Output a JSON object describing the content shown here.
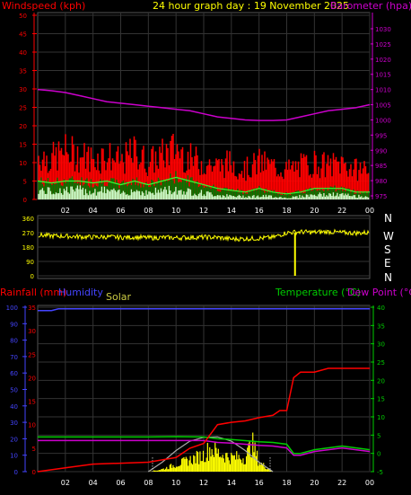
{
  "header": {
    "wind_label": "Windspeed (kph)",
    "title": "24 hour graph day : 19 November 2025",
    "baro_label": "Barometer (hpa)"
  },
  "colors": {
    "wind_label": "#ff0000",
    "title": "#ffff00",
    "baro": "#cc00cc",
    "gust": "#ff0000",
    "avgwind": "#00cc00",
    "lull": "#ccffcc",
    "winddir": "#ffff00",
    "rain": "#ff0000",
    "humidity": "#4444ff",
    "temperature": "#00cc00",
    "dewpoint": "#cc00cc",
    "solar": "#ffff00",
    "solar_max": "#aaaaaa",
    "grid": "#333333",
    "tick_red": "#ff0000",
    "tick_purple": "#cc00cc",
    "tick_blue": "#4444ff",
    "tick_green": "#00cc00",
    "tick_yellow": "#ffff00"
  },
  "dir_labels": [
    "N",
    "W",
    "S",
    "E",
    "N"
  ],
  "bottom_labels": {
    "rainfall": "Rainfall (mm)",
    "humidity": "Humidity",
    "solar": "Solar",
    "temperature": "Temperature (°C)",
    "dewpoint": "Dew Point (°C)"
  },
  "chart_data": [
    {
      "type": "line",
      "title": "24 hour graph day : 19 November 2025",
      "x_tick_labels": [
        "02",
        "04",
        "06",
        "08",
        "10",
        "12",
        "14",
        "16",
        "18",
        "20",
        "22",
        "00"
      ],
      "y_left": {
        "label": "Windspeed (kph)",
        "ticks": [
          0,
          5,
          10,
          15,
          20,
          25,
          30,
          35,
          40,
          45,
          50
        ]
      },
      "y_right": {
        "label": "Barometer (hpa)",
        "ticks": [
          975,
          980,
          985,
          990,
          995,
          1000,
          1005,
          1010,
          1015,
          1020,
          1025,
          1030
        ]
      },
      "series": [
        {
          "name": "Barometer (hpa)",
          "axis": "right",
          "x": [
            0,
            1,
            2,
            3,
            4,
            5,
            6,
            7,
            8,
            9,
            10,
            11,
            12,
            13,
            14,
            15,
            16,
            17,
            18,
            19,
            20,
            21,
            22,
            23,
            24
          ],
          "values": [
            1010,
            1009.6,
            1009,
            1008,
            1007,
            1006,
            1005.5,
            1005,
            1004.5,
            1004,
            1003.5,
            1003,
            1002,
            1001,
            1000.5,
            1000,
            999.8,
            999.8,
            1000,
            1001,
            1002,
            1003,
            1003.5,
            1004,
            1005
          ]
        },
        {
          "name": "gust",
          "axis": "left",
          "x": [
            0,
            1,
            2,
            3,
            4,
            5,
            6,
            7,
            8,
            9,
            10,
            11,
            12,
            13,
            14,
            15,
            16,
            17,
            18,
            19,
            20,
            21,
            22,
            23,
            24
          ],
          "values": [
            12,
            11,
            13,
            12,
            11,
            12,
            10,
            13,
            10,
            12,
            14,
            11,
            10,
            9,
            10,
            8,
            10,
            9,
            8,
            9,
            10,
            9,
            10,
            8,
            9
          ]
        },
        {
          "name": "average",
          "axis": "left",
          "x": [
            0,
            1,
            2,
            3,
            4,
            5,
            6,
            7,
            8,
            9,
            10,
            11,
            12,
            13,
            14,
            15,
            16,
            17,
            18,
            19,
            20,
            21,
            22,
            23,
            24
          ],
          "values": [
            5,
            4.5,
            5,
            5,
            4.5,
            5,
            4,
            5,
            4,
            5,
            6,
            5,
            4,
            3,
            2.5,
            2,
            3,
            2,
            1.5,
            2,
            3,
            3,
            3,
            2,
            2
          ]
        },
        {
          "name": "lull",
          "axis": "left",
          "x": [
            0,
            1,
            2,
            3,
            4,
            5,
            6,
            7,
            8,
            9,
            10,
            11,
            12,
            13,
            14,
            15,
            16,
            17,
            18,
            19,
            20,
            21,
            22,
            23,
            24
          ],
          "values": [
            3,
            2.5,
            3,
            3,
            2.5,
            3,
            2,
            3,
            2,
            3,
            3,
            2.5,
            2,
            1.5,
            1,
            1,
            1,
            1,
            0.5,
            1,
            1.5,
            1.5,
            1.5,
            1,
            1
          ]
        }
      ]
    },
    {
      "type": "line",
      "y_ticks": [
        0,
        90,
        180,
        270,
        360
      ],
      "y_tick_labels": [
        "0",
        "90",
        "180",
        "270",
        "360"
      ],
      "series": [
        {
          "name": "wind direction",
          "x": [
            0,
            1,
            2,
            3,
            4,
            5,
            6,
            7,
            8,
            9,
            10,
            11,
            12,
            13,
            14,
            15,
            16,
            17,
            18,
            19,
            20,
            21,
            22,
            23,
            24
          ],
          "values": [
            255,
            250,
            248,
            245,
            242,
            244,
            240,
            242,
            238,
            240,
            238,
            240,
            242,
            240,
            230,
            232,
            235,
            240,
            270,
            275,
            272,
            276,
            270,
            268,
            270
          ]
        }
      ]
    },
    {
      "type": "line",
      "x_tick_labels": [
        "02",
        "04",
        "06",
        "08",
        "10",
        "12",
        "14",
        "16",
        "18",
        "20",
        "22",
        "00"
      ],
      "y_left": {
        "label": "Rainfall (mm)",
        "ticks": [
          0,
          5,
          10,
          15,
          20,
          25,
          30,
          35
        ]
      },
      "y_humidity": {
        "label": "Humidity",
        "ticks": [
          0,
          10,
          20,
          30,
          40,
          50,
          60,
          70,
          80,
          90,
          100
        ]
      },
      "y_right": {
        "label": "Temperature (°C)",
        "ticks": [
          -5,
          0,
          5,
          10,
          15,
          20,
          25,
          30,
          35,
          40
        ]
      },
      "series": [
        {
          "name": "Rainfall (mm)",
          "axis": "left",
          "x": [
            0,
            2,
            4,
            6,
            8,
            9,
            10,
            11,
            12,
            13,
            14,
            15,
            16,
            17,
            17.5,
            18,
            18.5,
            19,
            20,
            21,
            22,
            23,
            24
          ],
          "values": [
            0,
            0.8,
            1.6,
            1.8,
            2,
            2.5,
            3,
            5,
            6,
            10,
            10.5,
            10.8,
            11.5,
            12,
            13,
            13,
            20,
            21.2,
            21.2,
            22,
            22,
            22,
            22
          ]
        },
        {
          "name": "Humidity",
          "axis": "humidity",
          "x": [
            0,
            1,
            1.5,
            2,
            4,
            6,
            8,
            10,
            12,
            14,
            16,
            18,
            20,
            22,
            24
          ],
          "values": [
            98,
            98,
            99,
            99,
            99,
            99,
            99,
            99,
            99,
            99,
            99,
            99,
            99,
            99,
            99
          ]
        },
        {
          "name": "Temperature (°C)",
          "axis": "right",
          "x": [
            0,
            2,
            4,
            6,
            8,
            10,
            12,
            13,
            14,
            16,
            17,
            18,
            18.5,
            19,
            20,
            22,
            24
          ],
          "values": [
            4.5,
            4.5,
            4.5,
            4.5,
            4.5,
            4.6,
            4.5,
            4,
            3.8,
            3.2,
            3,
            2.5,
            0,
            0,
            1,
            2,
            1
          ]
        },
        {
          "name": "Dew Point (°C)",
          "axis": "right",
          "x": [
            0,
            2,
            4,
            6,
            8,
            10,
            12,
            13,
            14,
            16,
            17,
            18,
            18.5,
            19,
            20,
            22,
            24
          ],
          "values": [
            3.5,
            3.5,
            3.5,
            3.5,
            3.5,
            3.5,
            3.5,
            3,
            2.8,
            2.2,
            2,
            1.5,
            -0.5,
            -0.5,
            0.5,
            1.5,
            0.5
          ]
        },
        {
          "name": "Solar",
          "axis": "left",
          "x": [
            8,
            9,
            10,
            11,
            12,
            12.5,
            13,
            14,
            15,
            15.5,
            16,
            17
          ],
          "values": [
            0,
            0.5,
            1.5,
            2.5,
            3.5,
            5,
            4,
            3,
            3,
            6,
            2,
            0
          ]
        },
        {
          "name": "Solar max",
          "axis": "left",
          "x": [
            8,
            9,
            10,
            11,
            12,
            13,
            14,
            15,
            16,
            17
          ],
          "values": [
            0,
            2,
            4.5,
            6.5,
            7.3,
            7.4,
            6.5,
            4.5,
            2,
            0
          ]
        }
      ]
    }
  ]
}
